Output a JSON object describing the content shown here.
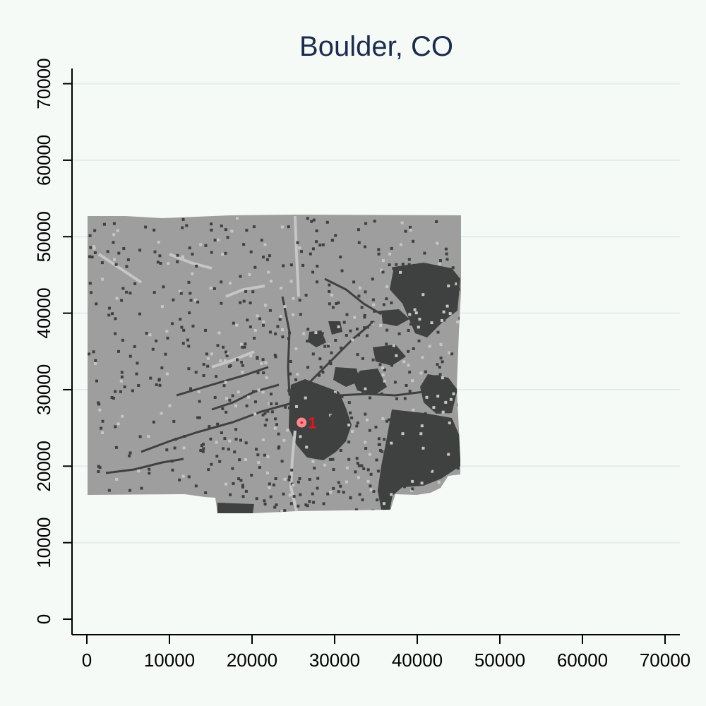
{
  "chart_data": {
    "type": "map",
    "title": "Boulder, CO",
    "xlabel": "",
    "ylabel": "",
    "xlim": [
      -2000,
      72000
    ],
    "ylim": [
      -2000,
      72000
    ],
    "x_ticks": [
      "0",
      "10000",
      "20000",
      "30000",
      "40000",
      "50000",
      "60000",
      "70000"
    ],
    "y_ticks": [
      "0",
      "10000",
      "20000",
      "30000",
      "40000",
      "50000",
      "60000",
      "70000"
    ],
    "grid": "horizontal",
    "layers": [
      {
        "name": "raster-base",
        "color": "#9e9e9e"
      },
      {
        "name": "raster-developed",
        "color": "#3e4140"
      },
      {
        "name": "raster-light",
        "color": "#c6c6c6"
      }
    ],
    "markers": [
      {
        "label": "1",
        "x": 26000,
        "y": 25700,
        "color": "#ff8a8e"
      }
    ]
  }
}
